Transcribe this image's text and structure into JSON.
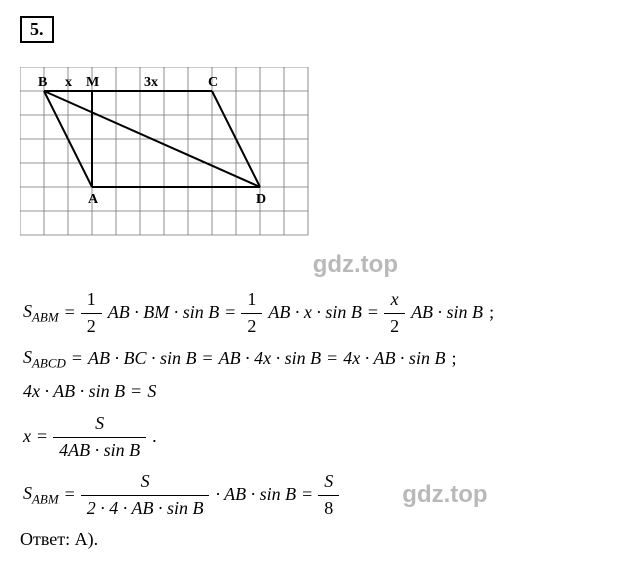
{
  "problem": {
    "number": "5."
  },
  "figure": {
    "labels": {
      "B": "B",
      "M": "M",
      "C": "C",
      "A": "A",
      "D": "D",
      "x": "x",
      "3x": "3x"
    },
    "grid": {
      "cell": 24,
      "cols": 12,
      "rows": 7,
      "stroke": "#737373",
      "stroke_width": 0.8
    },
    "points": {
      "B": [
        1,
        1
      ],
      "M": [
        3,
        1
      ],
      "C": [
        8,
        1
      ],
      "A": [
        3,
        5
      ],
      "D": [
        10,
        5
      ]
    },
    "line_color": "#000000",
    "line_width": 2,
    "font_size": 14
  },
  "watermarks": {
    "w1": "gdz.top",
    "w2": "gdz.top"
  },
  "eq": {
    "e1": {
      "lhs_S": "S",
      "lhs_sub": "ABM",
      "eq": " = ",
      "f1n": "1",
      "f1d": "2",
      "f1rest": "AB · BM · sin B",
      "eq2": " = ",
      "f2n": "1",
      "f2d": "2",
      "f2rest": "AB · x · sin B",
      "eq3": " = ",
      "f3n": "x",
      "f3d": "2",
      "f3rest": "AB · sin B",
      "tail": " ;"
    },
    "e2": {
      "lhs_S": "S",
      "lhs_sub": "ABCD",
      "eq": " = ",
      "r1": "AB · BC · sin B",
      "eq2": " = ",
      "r2": "AB · 4x · sin B",
      "eq3": " = ",
      "r3": "4x · AB · sin B",
      "tail": " ;"
    },
    "e3": {
      "l": "4x · AB · sin B",
      "eq": " = ",
      "r": "S"
    },
    "e4": {
      "l": "x",
      "eq": " = ",
      "num": "S",
      "den": "4AB · sin B",
      "tail": "."
    },
    "e5": {
      "lhs_S": "S",
      "lhs_sub": "ABM",
      "eq": " = ",
      "f1n": "S",
      "f1d": "2 · 4 · AB · sin B",
      "mid": " · AB · sin B",
      "eq2": " = ",
      "f2n": "S",
      "f2d": "8"
    }
  },
  "answer": {
    "label": "Ответ: ",
    "value": "А)."
  }
}
